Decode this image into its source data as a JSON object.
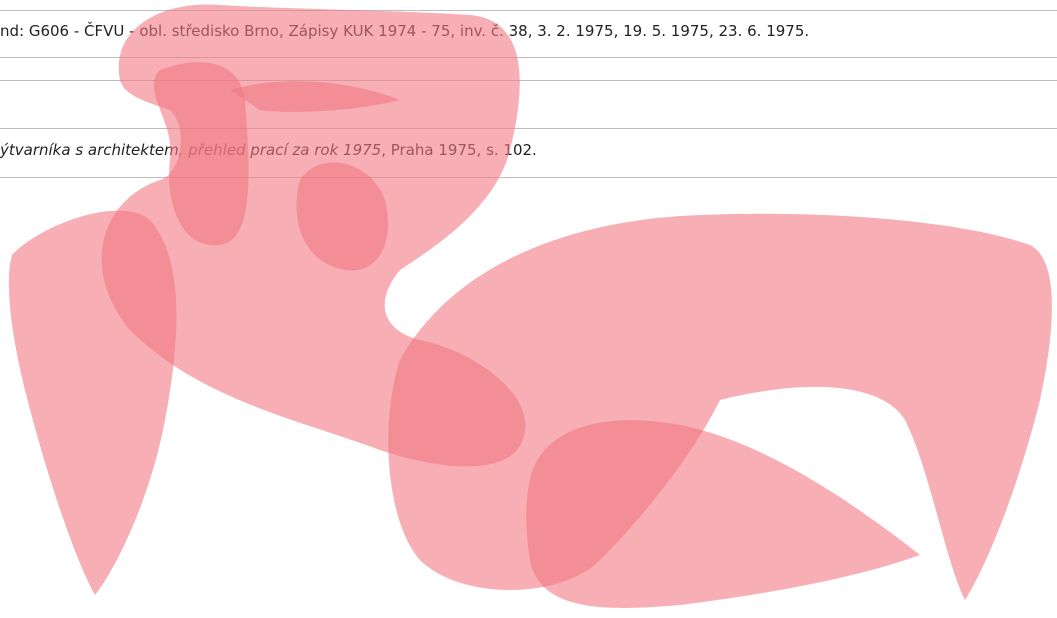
{
  "rows": [
    {
      "text": "nd: G606 - ČFVU - obl. středisko Brno, Zápisy KUK 1974 - 75, inv. č. 38, 3. 2. 1975, 19. 5. 1975, 23. 6. 1975."
    },
    {
      "italic": "ýtvarníka s architektem, přehled prací za rok 1975",
      "text": ", Praha 1975, s. 102."
    }
  ]
}
